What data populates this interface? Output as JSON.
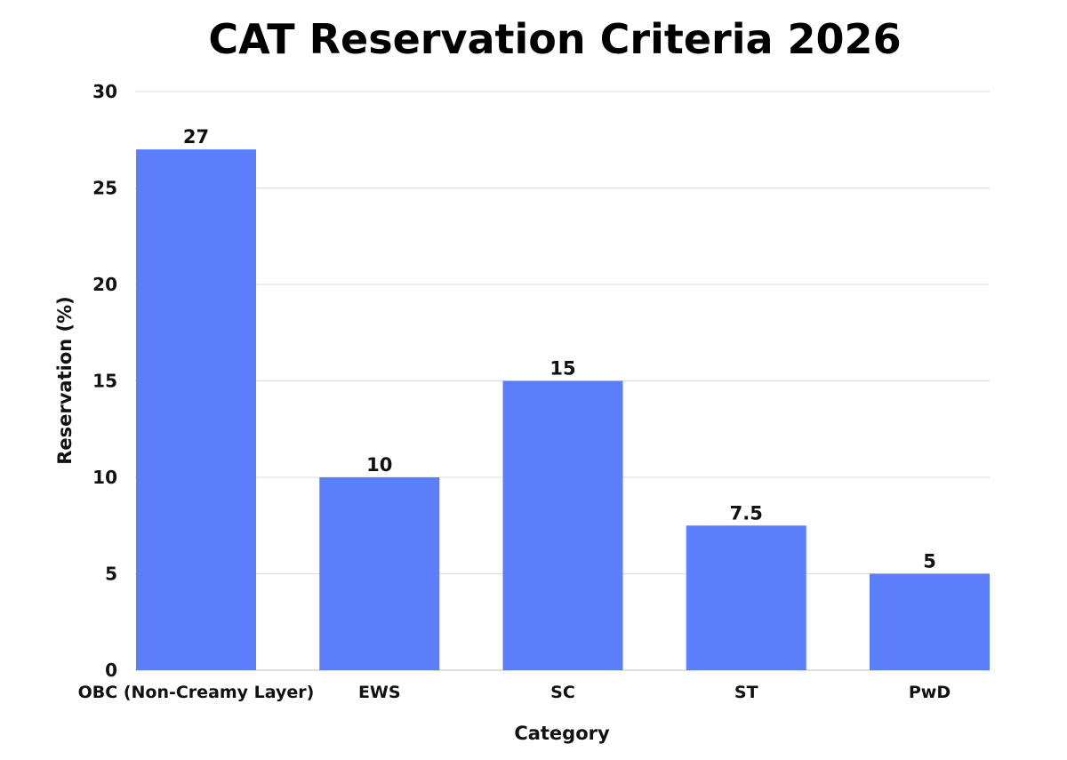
{
  "chart_data": {
    "type": "bar",
    "title": "CAT Reservation Criteria 2026",
    "xlabel": "Category",
    "ylabel": "Reservation (%)",
    "categories": [
      "OBC (Non-Creamy Layer)",
      "EWS",
      "SC",
      "ST",
      "PwD"
    ],
    "values": [
      27,
      10,
      15,
      7.5,
      5
    ],
    "value_labels": [
      "27",
      "10",
      "15",
      "7.5",
      "5"
    ],
    "ylim": [
      0,
      30
    ],
    "yticks": [
      0,
      5,
      10,
      15,
      20,
      25,
      30
    ],
    "grid": true,
    "legend": "none",
    "bar_color": "#5b7ffb"
  }
}
